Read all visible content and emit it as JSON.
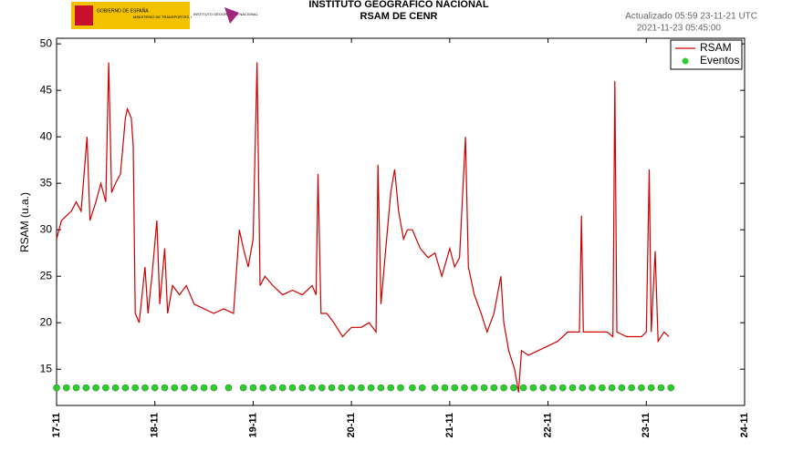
{
  "header": {
    "logo_texts": [
      "GOBIERNO DE ESPAÑA",
      "MINISTERIO DE TRANSPORTES, MOVILIDAD Y AGENDA URBANA",
      "INSTITUTO GEOGRÁFICO NACIONAL"
    ]
  },
  "chart_data": {
    "type": "line",
    "title": "INSTITUTO GEOGRÁFICO NACIONAL",
    "subtitle": "RSAM DE CENR",
    "annotations": [
      "Actualizado 05:59 23-11-21 UTC",
      "2021-11-23 05:45:00"
    ],
    "y_label": "RSAM (u.a.)",
    "xlim": [
      17,
      24
    ],
    "xticks": [
      {
        "value": 17,
        "label": "17-11"
      },
      {
        "value": 18,
        "label": "18-11"
      },
      {
        "value": 19,
        "label": "19-11"
      },
      {
        "value": 20,
        "label": "20-11"
      },
      {
        "value": 21,
        "label": "21-11"
      },
      {
        "value": 22,
        "label": "22-11"
      },
      {
        "value": 23,
        "label": "23-11"
      },
      {
        "value": 24,
        "label": "24-11"
      }
    ],
    "ylim": [
      11.1,
      50.6
    ],
    "yticks": [
      15,
      20,
      25,
      30,
      35,
      40,
      45,
      50
    ],
    "grid": false,
    "legend": "top-right",
    "series": [
      {
        "name": "RSAM",
        "color": "#cc0000",
        "x": [
          17.0,
          17.05,
          17.1,
          17.15,
          17.2,
          17.25,
          17.31,
          17.34,
          17.4,
          17.45,
          17.5,
          17.53,
          17.56,
          17.6,
          17.65,
          17.7,
          17.72,
          17.76,
          17.78,
          17.8,
          17.84,
          17.9,
          17.93,
          17.97,
          18.02,
          18.05,
          18.1,
          18.13,
          18.18,
          18.25,
          18.32,
          18.4,
          18.5,
          18.6,
          18.7,
          18.8,
          18.86,
          18.9,
          18.95,
          19.0,
          19.04,
          19.07,
          19.12,
          19.2,
          19.3,
          19.4,
          19.5,
          19.6,
          19.64,
          19.66,
          19.69,
          19.75,
          19.82,
          19.91,
          20.0,
          20.1,
          20.18,
          20.25,
          20.27,
          20.3,
          20.35,
          20.4,
          20.44,
          20.48,
          20.53,
          20.57,
          20.62,
          20.7,
          20.78,
          20.85,
          20.92,
          21.0,
          21.05,
          21.1,
          21.16,
          21.19,
          21.25,
          21.32,
          21.38,
          21.45,
          21.52,
          21.55,
          21.6,
          21.66,
          21.7,
          21.73,
          21.8,
          21.9,
          22.0,
          22.1,
          22.2,
          22.32,
          22.34,
          22.36,
          22.5,
          22.6,
          22.66,
          22.68,
          22.7,
          22.8,
          22.95,
          23.0,
          23.03,
          23.05,
          23.09,
          23.12,
          23.18,
          23.23
        ],
        "values": [
          29,
          31,
          31.5,
          32,
          33,
          32,
          40,
          31,
          33,
          35,
          33,
          48,
          34,
          35,
          36,
          42,
          43,
          42,
          39,
          21,
          20,
          26,
          21,
          25,
          31,
          22,
          28,
          21,
          24,
          23,
          24,
          22,
          21.5,
          21,
          21.5,
          21,
          30,
          28,
          26,
          29,
          48,
          24,
          25,
          24,
          23,
          23.5,
          23,
          24,
          23,
          36,
          21,
          21,
          20,
          18.5,
          19.5,
          19.5,
          20,
          19,
          37,
          22,
          28,
          34,
          36.5,
          32,
          29,
          30,
          30,
          28,
          27,
          27.5,
          25,
          28,
          26,
          27,
          40,
          26,
          23,
          21,
          19,
          21,
          25,
          20,
          17,
          15,
          12.5,
          17,
          16.5,
          17,
          17.5,
          18,
          19,
          19,
          31.5,
          19,
          19,
          19,
          18.5,
          46,
          19,
          18.5,
          18.5,
          19,
          36.5,
          19,
          27.7,
          18,
          19,
          18.5
        ]
      },
      {
        "name": "Eventos",
        "color": "#2ecc2e",
        "type": "scatter",
        "x": [
          17.0,
          17.1,
          17.2,
          17.3,
          17.4,
          17.5,
          17.6,
          17.7,
          17.8,
          17.9,
          18.0,
          18.1,
          18.2,
          18.3,
          18.4,
          18.5,
          18.6,
          18.75,
          18.9,
          19.0,
          19.1,
          19.2,
          19.3,
          19.4,
          19.5,
          19.6,
          19.7,
          19.8,
          19.9,
          20.0,
          20.1,
          20.2,
          20.3,
          20.4,
          20.5,
          20.62,
          20.72,
          20.85,
          20.95,
          21.05,
          21.15,
          21.25,
          21.35,
          21.45,
          21.55,
          21.65,
          21.75,
          21.85,
          21.95,
          22.05,
          22.15,
          22.25,
          22.35,
          22.45,
          22.55,
          22.65,
          22.75,
          22.85,
          22.95,
          23.05,
          23.15,
          23.25
        ],
        "values": [
          13,
          13,
          13,
          13,
          13,
          13,
          13,
          13,
          13,
          13,
          13,
          13,
          13,
          13,
          13,
          13,
          13,
          13,
          13,
          13,
          13,
          13,
          13,
          13,
          13,
          13,
          13,
          13,
          13,
          13,
          13,
          13,
          13,
          13,
          13,
          13,
          13,
          13,
          13,
          13,
          13,
          13,
          13,
          13,
          13,
          13,
          13,
          13,
          13,
          13,
          13,
          13,
          13,
          13,
          13,
          13,
          13,
          13,
          13,
          13,
          13,
          13
        ]
      }
    ]
  }
}
